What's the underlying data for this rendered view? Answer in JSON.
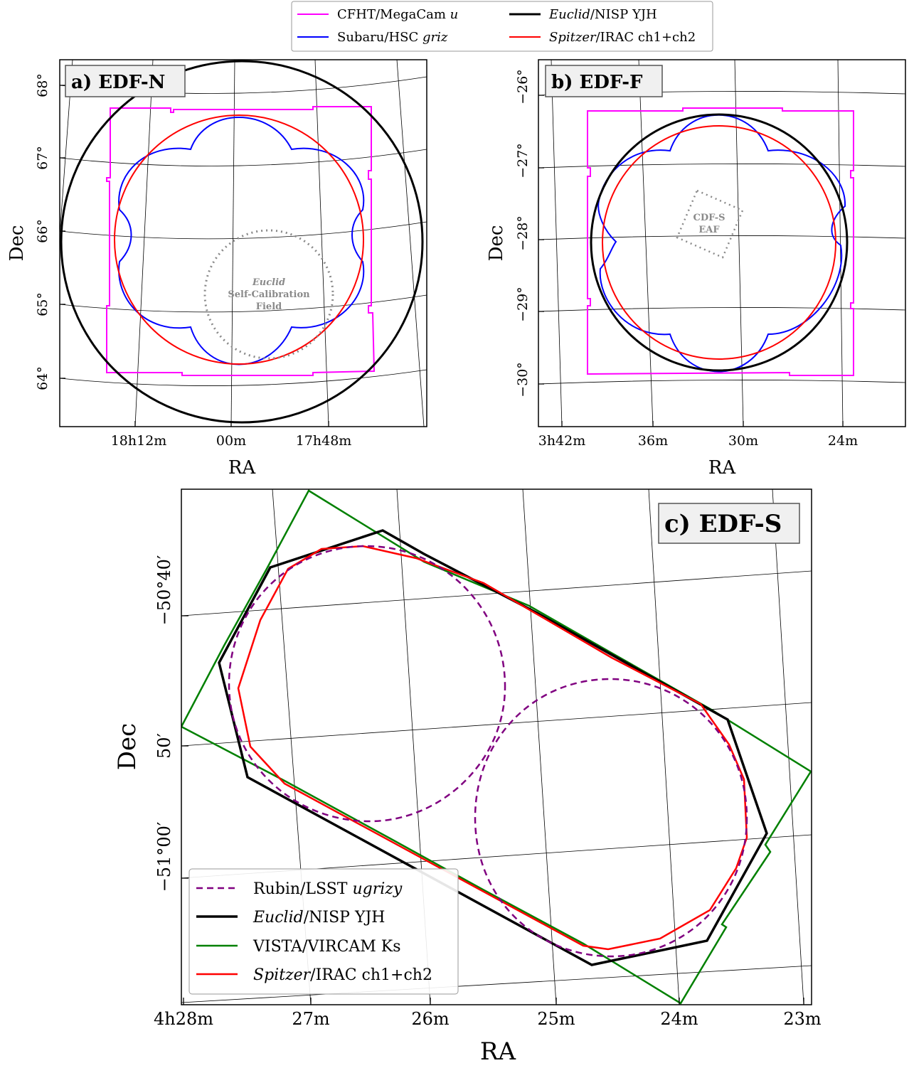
{
  "top_legend": [
    {
      "label": "CFHT/MegaCam u",
      "color": "#ff00ff"
    },
    {
      "label": "Euclid/NISP YJH",
      "color": "#000000"
    },
    {
      "label": "Subaru/HSC griz",
      "color": "#0000ff"
    },
    {
      "label": "Spitzer/IRAC ch1+ch2",
      "color": "#ff0000"
    }
  ],
  "chart_data": [
    {
      "type": "footprint-map",
      "panel": "a) EDF-N",
      "xlabel": "RA",
      "ylabel": "Dec",
      "x_ticks": [
        "18h12m",
        "00m",
        "17h48m"
      ],
      "y_ticks": [
        "64°",
        "65°",
        "66°",
        "67°",
        "68°"
      ],
      "grid": true,
      "series": [
        {
          "name": "CFHT/MegaCam u",
          "shape": "square with notched edges",
          "color": "#ff00ff"
        },
        {
          "name": "Subaru/HSC griz",
          "shape": "multi-lobed",
          "color": "#0000ff"
        },
        {
          "name": "Spitzer/IRAC ch1+ch2",
          "shape": "circle",
          "color": "#ff0000"
        },
        {
          "name": "Euclid/NISP YJH",
          "shape": "circle",
          "color": "#000000"
        }
      ],
      "annotation": {
        "lines": [
          "Euclid",
          "Self-Calibration",
          "Field"
        ],
        "style": "dotted ellipse",
        "color": "#8a8a8a"
      }
    },
    {
      "type": "footprint-map",
      "panel": "b) EDF-F",
      "xlabel": "RA",
      "ylabel": "Dec",
      "x_ticks": [
        "3h42m",
        "36m",
        "30m",
        "24m"
      ],
      "y_ticks": [
        "−26°",
        "−27°",
        "−28°",
        "−29°",
        "−30°"
      ],
      "grid": true,
      "series": [
        {
          "name": "CFHT/MegaCam u",
          "shape": "square with notched edges",
          "color": "#ff00ff"
        },
        {
          "name": "Subaru/HSC griz",
          "shape": "multi-lobed",
          "color": "#0000ff"
        },
        {
          "name": "Spitzer/IRAC ch1+ch2",
          "shape": "circle",
          "color": "#ff0000"
        },
        {
          "name": "Euclid/NISP YJH",
          "shape": "circle",
          "color": "#000000"
        }
      ],
      "annotation": {
        "lines": [
          "CDF-S",
          "EAF"
        ],
        "style": "dotted square",
        "color": "#8a8a8a"
      }
    },
    {
      "type": "footprint-map",
      "panel": "c) EDF-S",
      "xlabel": "RA",
      "ylabel": "Dec",
      "x_ticks": [
        "4h28m",
        "27m",
        "26m",
        "25m",
        "24m",
        "23m"
      ],
      "y_ticks": [
        "−50°40′",
        "50′",
        "−51°00′"
      ],
      "grid": true,
      "series": [
        {
          "name": "Rubin/LSST ugrizy",
          "shape": "two circles",
          "color": "#800080",
          "style": "dashed"
        },
        {
          "name": "Euclid/NISP YJH",
          "shape": "polygon",
          "color": "#000000"
        },
        {
          "name": "VISTA/VIRCAM Ks",
          "shape": "rotated rectangle",
          "color": "#008000"
        },
        {
          "name": "Spitzer/IRAC ch1+ch2",
          "shape": "polygon",
          "color": "#ff0000"
        }
      ],
      "legend": [
        {
          "label": "Rubin/LSST ugrizy",
          "color": "#800080",
          "dashed": true
        },
        {
          "label": "Euclid/NISP YJH",
          "color": "#000000",
          "dashed": false
        },
        {
          "label": "VISTA/VIRCAM Ks",
          "color": "#008000",
          "dashed": false
        },
        {
          "label": "Spitzer/IRAC ch1+ch2",
          "color": "#ff0000",
          "dashed": false
        }
      ],
      "legend_position": "bottom-left"
    }
  ]
}
